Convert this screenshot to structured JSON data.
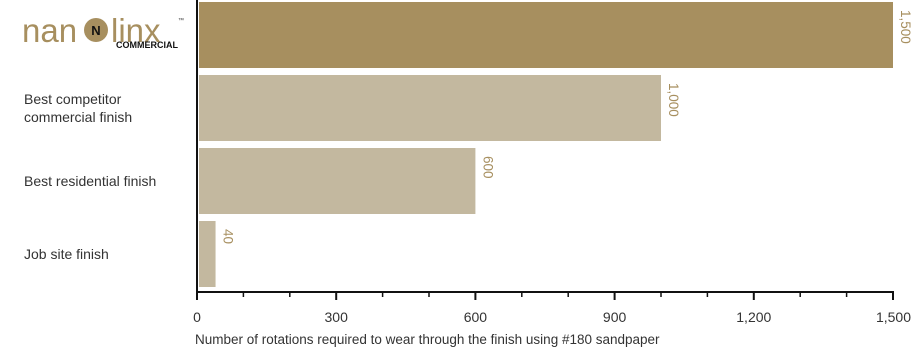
{
  "colors": {
    "highlight_bar": "#a78f5f",
    "other_bars": "#c3b89f",
    "label_color": "#a78f5f",
    "axis": "#111111"
  },
  "chart_data": {
    "type": "bar",
    "orientation": "horizontal",
    "categories": [
      {
        "label_lines": [
          "nanolinx",
          "COMMERCIAL"
        ],
        "is_logo": true
      },
      {
        "label_lines": [
          "Best competitor",
          "commercial finish"
        ]
      },
      {
        "label_lines": [
          "Best residential finish"
        ]
      },
      {
        "label_lines": [
          "Job site finish"
        ]
      }
    ],
    "values": [
      1500,
      1000,
      600,
      40
    ],
    "data_labels": [
      "1,500",
      "1,000",
      "600",
      "40"
    ],
    "xlim": [
      0,
      1500
    ],
    "x_ticks": [
      0,
      300,
      600,
      900,
      1200,
      1500
    ],
    "x_tick_labels": [
      "0",
      "300",
      "600",
      "900",
      "1,200",
      "1,500"
    ],
    "xlabel": "Number of rotations required to wear through the finish using #180 sandpaper",
    "grid": false,
    "legend": "none"
  },
  "logo": {
    "word_prefix": "nan",
    "word_center_glyph": "N",
    "word_suffix": "linx",
    "tm": "™",
    "subtitle": "COMMERCIAL"
  }
}
